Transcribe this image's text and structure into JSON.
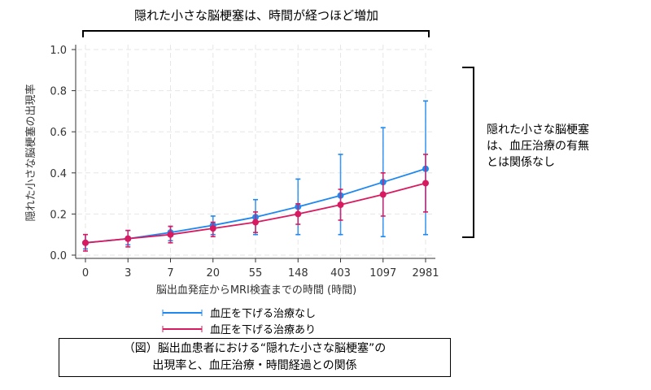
{
  "annotations": {
    "top": "隠れた小さな脳梗塞は、時間が経つほど増加",
    "right": [
      "隠れた小さな脳梗塞",
      "は、血圧治療の有無",
      "とは関係なし"
    ],
    "caption": [
      "（図）脳出血患者における“隠れた小さな脳梗塞”の",
      "出現率と、血圧治療・時間経過との関係"
    ]
  },
  "chart_data": {
    "type": "line",
    "xlabel": "脳出血発症からMRI検査までの時間 (時間)",
    "ylabel": "隠れた小さな脳梗塞の出現率",
    "categories": [
      "0",
      "3",
      "7",
      "20",
      "55",
      "148",
      "403",
      "1097",
      "2981"
    ],
    "yticks": [
      "0.0",
      "0.2",
      "0.4",
      "0.6",
      "0.8",
      "1.0"
    ],
    "ylim": [
      0,
      1
    ],
    "grid": true,
    "legend_position": "bottom",
    "series": [
      {
        "name": "血圧を下げる治療なし",
        "color": "#1e88f0",
        "values": [
          0.06,
          0.08,
          0.11,
          0.145,
          0.185,
          0.235,
          0.29,
          0.355,
          0.42
        ],
        "lower": [
          0.03,
          0.05,
          0.07,
          0.1,
          0.1,
          0.1,
          0.1,
          0.09,
          0.1
        ],
        "upper": [
          0.1,
          0.12,
          0.14,
          0.19,
          0.27,
          0.37,
          0.49,
          0.62,
          0.75
        ]
      },
      {
        "name": "血圧を下げる治療あり",
        "color": "#d81b60",
        "values": [
          0.06,
          0.08,
          0.1,
          0.13,
          0.16,
          0.2,
          0.245,
          0.295,
          0.35
        ],
        "lower": [
          0.02,
          0.04,
          0.06,
          0.09,
          0.11,
          0.15,
          0.17,
          0.19,
          0.21
        ],
        "upper": [
          0.1,
          0.12,
          0.14,
          0.16,
          0.21,
          0.25,
          0.32,
          0.4,
          0.49
        ]
      }
    ]
  }
}
